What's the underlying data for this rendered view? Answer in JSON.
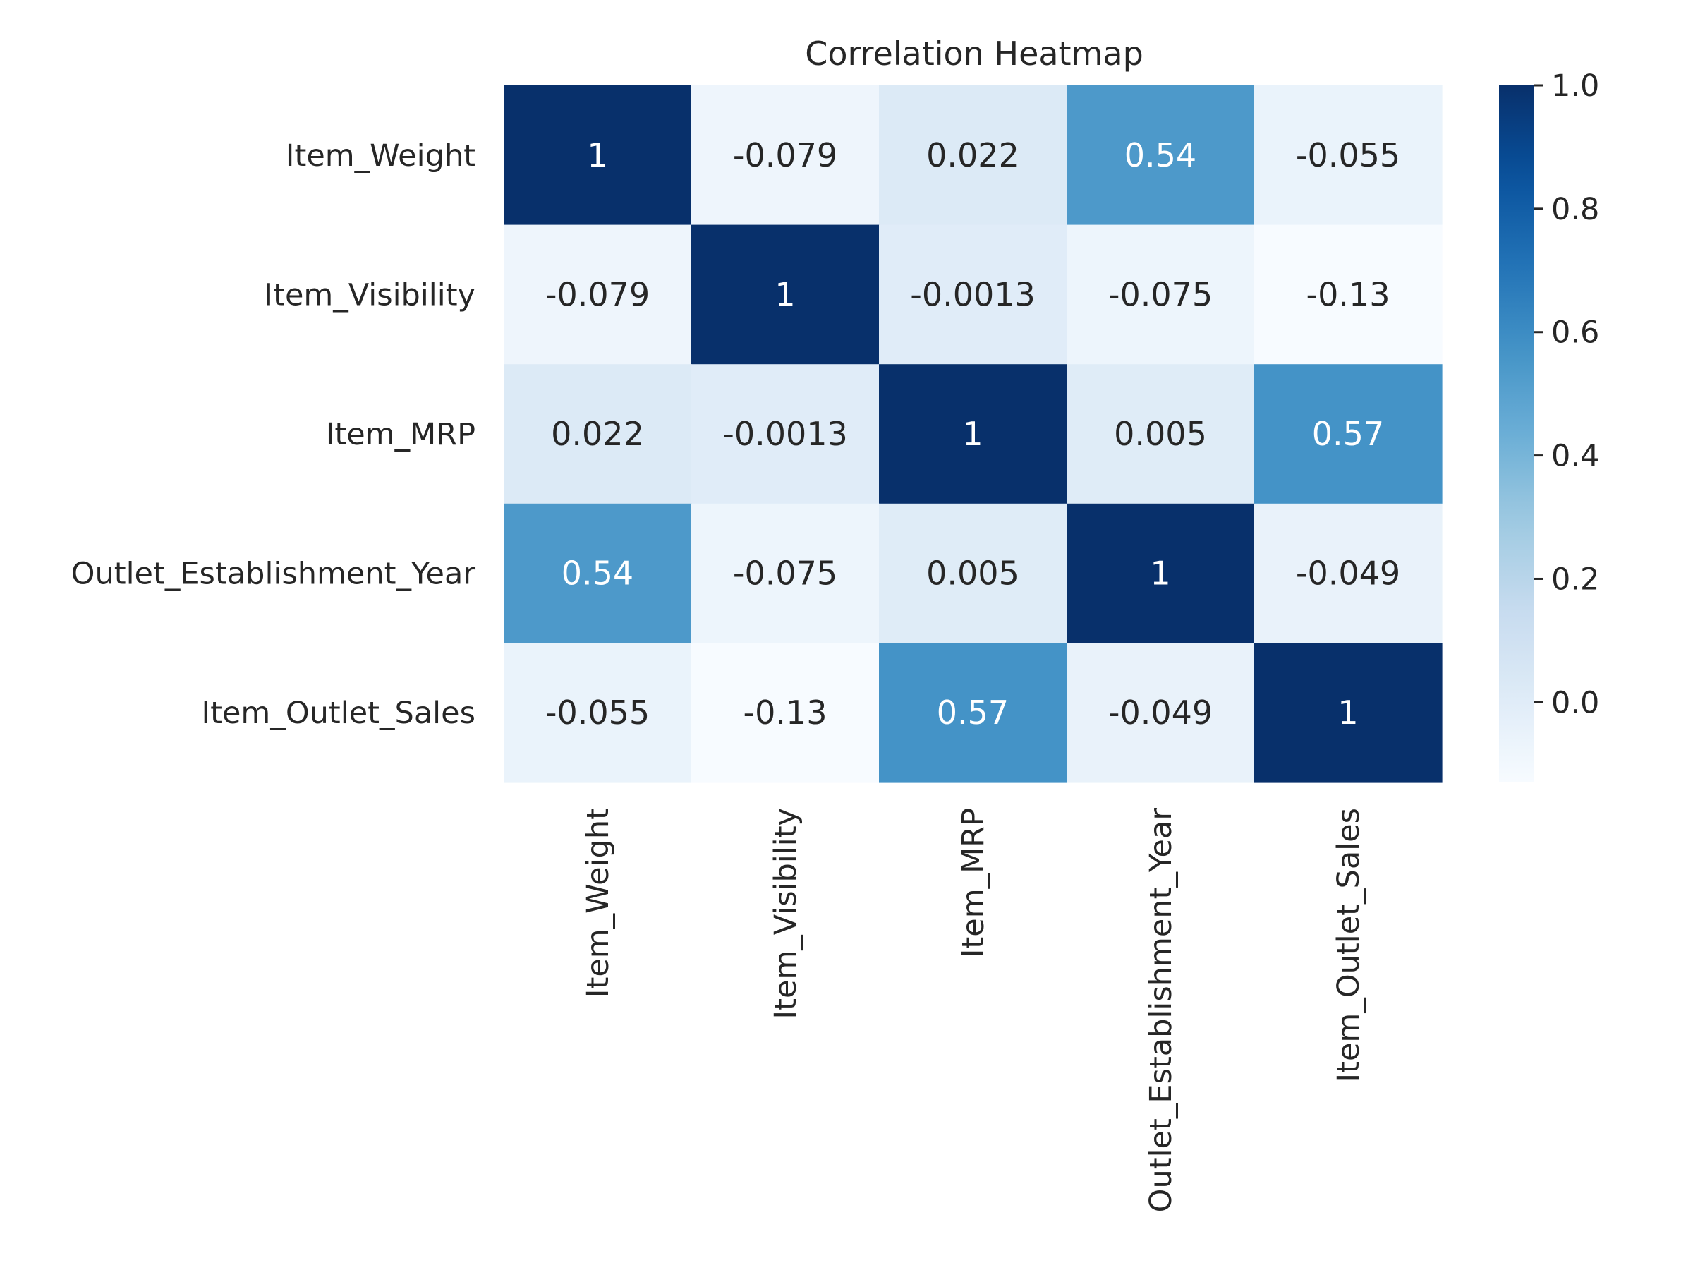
{
  "chart_data": {
    "type": "heatmap",
    "title": "Correlation Heatmap",
    "rows": [
      "Item_Weight",
      "Item_Visibility",
      "Item_MRP",
      "Outlet_Establishment_Year",
      "Item_Outlet_Sales"
    ],
    "columns": [
      "Item_Weight",
      "Item_Visibility",
      "Item_MRP",
      "Outlet_Establishment_Year",
      "Item_Outlet_Sales"
    ],
    "values": [
      [
        1,
        -0.079,
        0.022,
        0.54,
        -0.055
      ],
      [
        -0.079,
        1,
        -0.0013,
        -0.075,
        -0.13
      ],
      [
        0.022,
        -0.0013,
        1,
        0.005,
        0.57
      ],
      [
        0.54,
        -0.075,
        0.005,
        1,
        -0.049
      ],
      [
        -0.055,
        -0.13,
        0.57,
        -0.049,
        1
      ]
    ],
    "annotations": [
      [
        "1",
        "-0.079",
        "0.022",
        "0.54",
        "-0.055"
      ],
      [
        "-0.079",
        "1",
        "-0.0013",
        "-0.075",
        "-0.13"
      ],
      [
        "0.022",
        "-0.0013",
        "1",
        "0.005",
        "0.57"
      ],
      [
        "0.54",
        "-0.075",
        "0.005",
        "1",
        "-0.049"
      ],
      [
        "-0.055",
        "-0.13",
        "0.57",
        "-0.049",
        "1"
      ]
    ],
    "colormap": "Blues",
    "vmin": -0.13,
    "vmax": 1.0,
    "colorbar": {
      "ticks": [
        0.0,
        0.2,
        0.4,
        0.6,
        0.8,
        1.0
      ],
      "tick_labels": [
        "0.0",
        "0.2",
        "0.4",
        "0.6",
        "0.8",
        "1.0"
      ],
      "placement": "right"
    },
    "xtick_rotation": 90,
    "grid": false
  }
}
